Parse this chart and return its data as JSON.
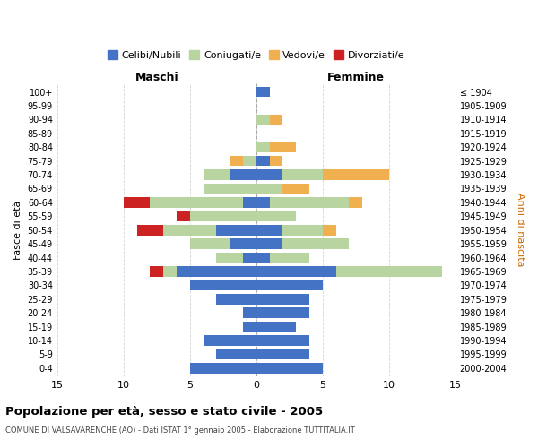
{
  "age_groups": [
    "100+",
    "95-99",
    "90-94",
    "85-89",
    "80-84",
    "75-79",
    "70-74",
    "65-69",
    "60-64",
    "55-59",
    "50-54",
    "45-49",
    "40-44",
    "35-39",
    "30-34",
    "25-29",
    "20-24",
    "15-19",
    "10-14",
    "5-9",
    "0-4"
  ],
  "birth_years": [
    "≤ 1904",
    "1905-1909",
    "1910-1914",
    "1915-1919",
    "1920-1924",
    "1925-1929",
    "1930-1934",
    "1935-1939",
    "1940-1944",
    "1945-1949",
    "1950-1954",
    "1955-1959",
    "1960-1964",
    "1965-1969",
    "1970-1974",
    "1975-1979",
    "1980-1984",
    "1985-1989",
    "1990-1994",
    "1995-1999",
    "2000-2004"
  ],
  "maschi_celibe": [
    0,
    0,
    0,
    0,
    0,
    0,
    2,
    0,
    1,
    0,
    3,
    2,
    1,
    6,
    5,
    3,
    1,
    1,
    4,
    3,
    5
  ],
  "maschi_coniugato": [
    0,
    0,
    0,
    0,
    0,
    1,
    2,
    4,
    7,
    5,
    4,
    3,
    2,
    1,
    0,
    0,
    0,
    0,
    0,
    0,
    0
  ],
  "maschi_vedovo": [
    0,
    0,
    0,
    0,
    0,
    1,
    0,
    0,
    0,
    0,
    0,
    0,
    0,
    0,
    0,
    0,
    0,
    0,
    0,
    0,
    0
  ],
  "maschi_divorziato": [
    0,
    0,
    0,
    0,
    0,
    0,
    0,
    0,
    2,
    1,
    2,
    0,
    0,
    1,
    0,
    0,
    0,
    0,
    0,
    0,
    0
  ],
  "femmine_celibe": [
    1,
    0,
    0,
    0,
    0,
    1,
    2,
    0,
    1,
    0,
    2,
    2,
    1,
    6,
    5,
    4,
    4,
    3,
    4,
    4,
    5
  ],
  "femmine_coniugata": [
    0,
    0,
    1,
    0,
    1,
    0,
    3,
    2,
    6,
    3,
    3,
    5,
    3,
    8,
    0,
    0,
    0,
    0,
    0,
    0,
    0
  ],
  "femmine_vedova": [
    0,
    0,
    1,
    0,
    2,
    1,
    5,
    2,
    1,
    0,
    1,
    0,
    0,
    0,
    0,
    0,
    0,
    0,
    0,
    0,
    0
  ],
  "femmine_divorziata": [
    0,
    0,
    0,
    0,
    0,
    0,
    0,
    0,
    0,
    0,
    0,
    0,
    0,
    0,
    0,
    0,
    0,
    0,
    0,
    0,
    0
  ],
  "colors": {
    "celibe": "#4472c4",
    "coniugato": "#b8d4a0",
    "vedovo": "#f0b050",
    "divorziato": "#cc2222"
  },
  "xlim": 15,
  "title": "Popolazione per età, sesso e stato civile - 2005",
  "subtitle": "COMUNE DI VALSAVARENCHE (AO) - Dati ISTAT 1° gennaio 2005 - Elaborazione TUTTITALIA.IT",
  "xlabel_left": "Maschi",
  "xlabel_right": "Femmine",
  "ylabel_left": "Fasce di età",
  "ylabel_right": "Anni di nascita",
  "legend_labels": [
    "Celibi/Nubili",
    "Coniugati/e",
    "Vedovi/e",
    "Divorziati/e"
  ]
}
